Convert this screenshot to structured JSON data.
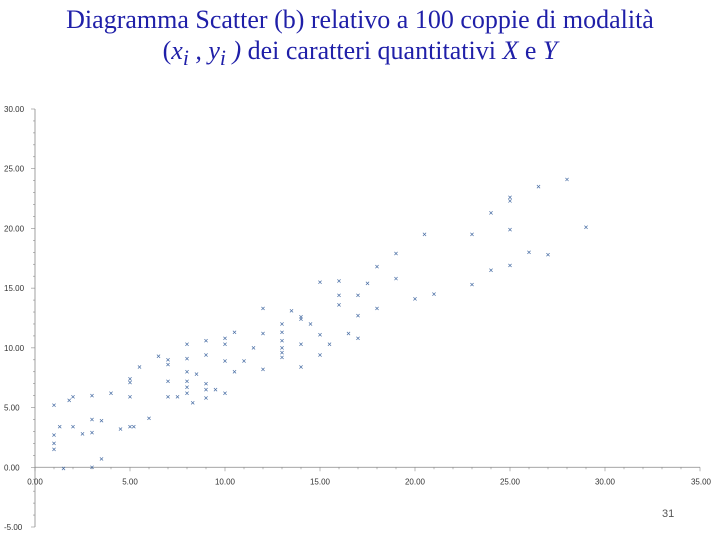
{
  "slide": {
    "title_line1": "Diagramma Scatter (b) relativo a 100 coppie di modalità",
    "title_open": "(",
    "title_xi": "x",
    "title_xi_sub": "i",
    "title_sep": " , ",
    "title_yi": "y",
    "title_yi_sub": "i",
    "title_close": " )",
    "title_rest": " dei caratteri quantitativi ",
    "title_X": "X",
    "title_e": " e ",
    "title_Y": "Y",
    "page_number": "31",
    "text_color": "#1f1fa8"
  },
  "chart_data": {
    "type": "scatter",
    "title": "",
    "xlabel": "",
    "ylabel": "",
    "xlim": [
      0,
      35
    ],
    "ylim": [
      -5,
      30
    ],
    "x_ticks": [
      "0.00",
      "5.00",
      "10.00",
      "15.00",
      "20.00",
      "25.00",
      "30.00",
      "35.00"
    ],
    "y_ticks": [
      "-5.00",
      "0.00",
      "5.00",
      "10.00",
      "15.00",
      "20.00",
      "25.00",
      "30.00"
    ],
    "grid": false,
    "marker": "x",
    "marker_color": "#4a6fa5",
    "series": [
      {
        "points": [
          [
            1.0,
            1.5
          ],
          [
            1.0,
            2.0
          ],
          [
            1.0,
            2.7
          ],
          [
            1.0,
            5.2
          ],
          [
            1.3,
            3.4
          ],
          [
            1.5,
            -0.1
          ],
          [
            1.8,
            5.6
          ],
          [
            2.0,
            3.4
          ],
          [
            2.0,
            5.9
          ],
          [
            2.5,
            2.8
          ],
          [
            3.0,
            0.0
          ],
          [
            3.0,
            2.9
          ],
          [
            3.0,
            4.0
          ],
          [
            3.0,
            6.0
          ],
          [
            3.5,
            0.7
          ],
          [
            3.5,
            3.9
          ],
          [
            4.0,
            6.2
          ],
          [
            4.5,
            3.2
          ],
          [
            5.0,
            5.9
          ],
          [
            5.0,
            7.1
          ],
          [
            5.0,
            7.4
          ],
          [
            5.0,
            3.4
          ],
          [
            5.2,
            3.4
          ],
          [
            5.5,
            8.4
          ],
          [
            6.0,
            4.1
          ],
          [
            6.5,
            9.3
          ],
          [
            7.0,
            9.0
          ],
          [
            7.0,
            8.6
          ],
          [
            7.0,
            7.2
          ],
          [
            7.0,
            5.9
          ],
          [
            7.5,
            5.9
          ],
          [
            8.0,
            9.1
          ],
          [
            8.0,
            8.0
          ],
          [
            8.0,
            7.2
          ],
          [
            8.0,
            6.7
          ],
          [
            8.0,
            6.2
          ],
          [
            8.3,
            5.4
          ],
          [
            8.0,
            10.3
          ],
          [
            8.5,
            7.8
          ],
          [
            9.0,
            7.0
          ],
          [
            9.0,
            6.5
          ],
          [
            9.0,
            5.8
          ],
          [
            9.0,
            9.4
          ],
          [
            9.0,
            10.6
          ],
          [
            9.5,
            6.5
          ],
          [
            10.0,
            6.2
          ],
          [
            10.0,
            10.8
          ],
          [
            10.0,
            10.3
          ],
          [
            10.0,
            8.9
          ],
          [
            10.5,
            11.3
          ],
          [
            10.5,
            8.0
          ],
          [
            11.0,
            8.9
          ],
          [
            11.5,
            10.0
          ],
          [
            12.0,
            8.2
          ],
          [
            12.0,
            11.2
          ],
          [
            12.0,
            13.3
          ],
          [
            13.0,
            12.0
          ],
          [
            13.0,
            11.3
          ],
          [
            13.0,
            10.6
          ],
          [
            13.0,
            10.0
          ],
          [
            13.0,
            9.6
          ],
          [
            13.0,
            9.2
          ],
          [
            13.5,
            13.1
          ],
          [
            14.0,
            12.6
          ],
          [
            14.0,
            12.4
          ],
          [
            14.0,
            10.3
          ],
          [
            14.0,
            8.4
          ],
          [
            14.5,
            12.0
          ],
          [
            15.0,
            11.1
          ],
          [
            15.0,
            9.4
          ],
          [
            15.0,
            15.5
          ],
          [
            15.5,
            10.3
          ],
          [
            16.0,
            13.6
          ],
          [
            16.0,
            14.4
          ],
          [
            16.0,
            15.6
          ],
          [
            16.5,
            11.2
          ],
          [
            17.0,
            14.4
          ],
          [
            17.0,
            12.7
          ],
          [
            17.0,
            10.8
          ],
          [
            17.5,
            15.4
          ],
          [
            18.0,
            16.8
          ],
          [
            18.0,
            13.3
          ],
          [
            19.0,
            17.9
          ],
          [
            19.0,
            15.8
          ],
          [
            20.0,
            14.1
          ],
          [
            20.5,
            19.5
          ],
          [
            21.0,
            14.5
          ],
          [
            23.0,
            19.5
          ],
          [
            23.0,
            15.3
          ],
          [
            24.0,
            21.3
          ],
          [
            24.0,
            16.5
          ],
          [
            25.0,
            16.9
          ],
          [
            25.0,
            19.9
          ],
          [
            25.0,
            22.3
          ],
          [
            25.0,
            22.6
          ],
          [
            26.0,
            18.0
          ],
          [
            26.5,
            23.5
          ],
          [
            27.0,
            17.8
          ],
          [
            28.0,
            24.1
          ],
          [
            29.0,
            20.1
          ]
        ]
      }
    ]
  }
}
